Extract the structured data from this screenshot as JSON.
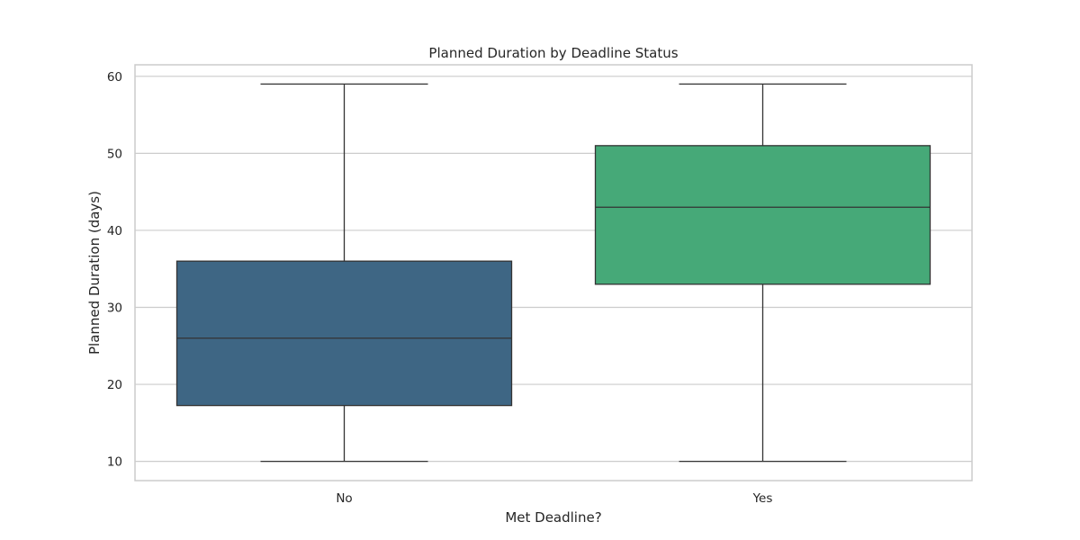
{
  "chart_data": {
    "type": "box",
    "title": "Planned Duration by Deadline Status",
    "xlabel": "Met Deadline?",
    "ylabel": "Planned Duration (days)",
    "ylim": [
      7.5,
      61.5
    ],
    "yticks": [
      10,
      20,
      30,
      40,
      50,
      60
    ],
    "grid": true,
    "categories": [
      "No",
      "Yes"
    ],
    "boxes": [
      {
        "category": "No",
        "min": 10,
        "q1": 17.25,
        "median": 26,
        "q3": 36,
        "max": 59,
        "color": "#3e6684"
      },
      {
        "category": "Yes",
        "min": 10,
        "q1": 33,
        "median": 43,
        "q3": 51,
        "max": 59,
        "color": "#46a978"
      }
    ]
  }
}
